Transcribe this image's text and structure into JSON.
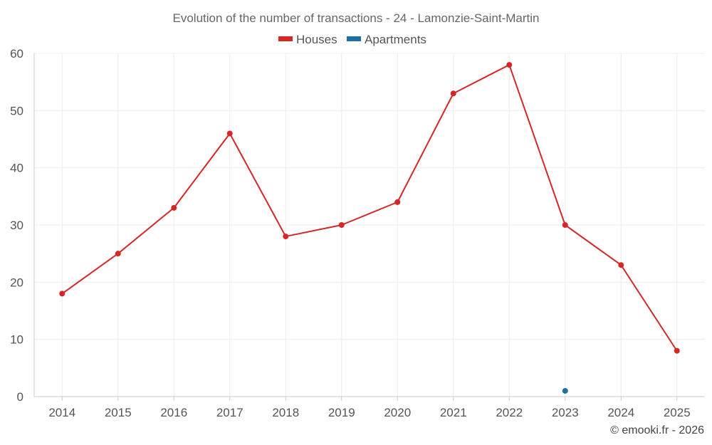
{
  "chart_data": {
    "type": "line",
    "title": "Evolution of the number of transactions - 24 - Lamonzie-Saint-Martin",
    "categories": [
      "2014",
      "2015",
      "2016",
      "2017",
      "2018",
      "2019",
      "2020",
      "2021",
      "2022",
      "2023",
      "2024",
      "2025"
    ],
    "series": [
      {
        "name": "Houses",
        "color": "#d62728",
        "values": [
          18,
          25,
          33,
          46,
          28,
          30,
          34,
          53,
          58,
          30,
          23,
          8
        ]
      },
      {
        "name": "Apartments",
        "color": "#1f6fa3",
        "values": [
          null,
          null,
          null,
          null,
          null,
          null,
          null,
          null,
          null,
          1,
          null,
          null
        ]
      }
    ],
    "ylim": [
      0,
      60
    ],
    "yticks": [
      "0",
      "10",
      "20",
      "30",
      "40",
      "50",
      "60"
    ],
    "grid": true,
    "legend": "top-center",
    "xlabel": "",
    "ylabel": ""
  },
  "footer": "© emooki.fr - 2026"
}
